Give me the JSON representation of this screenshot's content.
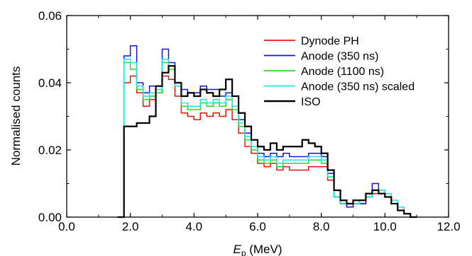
{
  "chart_data": {
    "type": "line",
    "title": "",
    "xlabel": "E",
    "xlabel_sub": "p",
    "xlabel_unit": " (MeV)",
    "ylabel": "Normalised counts",
    "xlim": [
      0,
      12
    ],
    "ylim": [
      0,
      0.06
    ],
    "x_ticks": [
      0,
      2,
      4,
      6,
      8,
      10,
      12
    ],
    "x_tick_labels": [
      "0.0",
      "2.0",
      "4.0",
      "6.0",
      "8.0",
      "10.0",
      "12.0"
    ],
    "y_ticks": [
      0,
      0.02,
      0.04,
      0.06
    ],
    "y_tick_labels": [
      "0.00",
      "0.02",
      "0.04",
      "0.06"
    ],
    "grid": false,
    "legend_position": "top-right",
    "x": [
      1.6,
      1.8,
      2.0,
      2.2,
      2.4,
      2.6,
      2.8,
      3.0,
      3.2,
      3.4,
      3.6,
      3.8,
      4.0,
      4.2,
      4.4,
      4.6,
      4.8,
      5.0,
      5.2,
      5.4,
      5.6,
      5.8,
      6.0,
      6.2,
      6.4,
      6.6,
      6.8,
      7.0,
      7.2,
      7.4,
      7.6,
      7.8,
      8.0,
      8.2,
      8.4,
      8.6,
      8.8,
      9.0,
      9.2,
      9.4,
      9.6,
      9.8,
      10.0,
      10.2,
      10.4,
      10.6,
      10.8,
      11.0
    ],
    "series": [
      {
        "name": "Dynode PH",
        "color": "#e8140c",
        "values": [
          0.0,
          0.04,
          0.042,
          0.037,
          0.033,
          0.035,
          0.037,
          0.042,
          0.041,
          0.036,
          0.031,
          0.03,
          0.029,
          0.031,
          0.03,
          0.031,
          0.03,
          0.032,
          0.029,
          0.025,
          0.021,
          0.019,
          0.016,
          0.015,
          0.016,
          0.014,
          0.015,
          0.014,
          0.014,
          0.014,
          0.015,
          0.015,
          0.015,
          0.011,
          0.006,
          0.004,
          0.003,
          0.004,
          0.004,
          0.006,
          0.007,
          0.007,
          0.006,
          0.004,
          0.003,
          0.001,
          0.0,
          0.0
        ]
      },
      {
        "name": "Anode (350 ns)",
        "color": "#1414dc",
        "values": [
          0.0,
          0.048,
          0.051,
          0.04,
          0.037,
          0.039,
          0.037,
          0.05,
          0.046,
          0.04,
          0.038,
          0.037,
          0.037,
          0.039,
          0.038,
          0.038,
          0.036,
          0.037,
          0.036,
          0.029,
          0.025,
          0.023,
          0.019,
          0.018,
          0.019,
          0.018,
          0.019,
          0.018,
          0.018,
          0.018,
          0.019,
          0.019,
          0.018,
          0.013,
          0.006,
          0.004,
          0.003,
          0.004,
          0.004,
          0.006,
          0.01,
          0.007,
          0.006,
          0.005,
          0.003,
          0.001,
          0.0,
          0.0
        ]
      },
      {
        "name": "Anode (1100 ns)",
        "color": "#22dd22",
        "values": [
          0.0,
          0.046,
          0.044,
          0.038,
          0.035,
          0.036,
          0.037,
          0.046,
          0.044,
          0.039,
          0.033,
          0.032,
          0.032,
          0.034,
          0.033,
          0.034,
          0.033,
          0.035,
          0.032,
          0.027,
          0.023,
          0.02,
          0.017,
          0.016,
          0.017,
          0.015,
          0.016,
          0.016,
          0.016,
          0.016,
          0.017,
          0.017,
          0.016,
          0.012,
          0.006,
          0.004,
          0.004,
          0.004,
          0.005,
          0.006,
          0.008,
          0.008,
          0.007,
          0.005,
          0.003,
          0.001,
          0.0,
          0.0
        ]
      },
      {
        "name": "Anode (350 ns) scaled",
        "color": "#1fe6e6",
        "values": [
          0.0,
          0.047,
          0.046,
          0.039,
          0.036,
          0.037,
          0.038,
          0.047,
          0.045,
          0.039,
          0.034,
          0.033,
          0.033,
          0.035,
          0.034,
          0.035,
          0.034,
          0.036,
          0.033,
          0.028,
          0.024,
          0.021,
          0.018,
          0.017,
          0.018,
          0.016,
          0.017,
          0.017,
          0.017,
          0.017,
          0.018,
          0.018,
          0.017,
          0.012,
          0.006,
          0.004,
          0.004,
          0.004,
          0.005,
          0.006,
          0.008,
          0.008,
          0.007,
          0.005,
          0.003,
          0.001,
          0.0,
          0.0
        ]
      },
      {
        "name": "ISO",
        "color": "#000000",
        "values": [
          0.0,
          0.027,
          0.027,
          0.028,
          0.028,
          0.03,
          0.039,
          0.043,
          0.045,
          0.04,
          0.036,
          0.037,
          0.036,
          0.038,
          0.037,
          0.036,
          0.038,
          0.041,
          0.036,
          0.031,
          0.027,
          0.023,
          0.021,
          0.02,
          0.022,
          0.02,
          0.021,
          0.021,
          0.021,
          0.023,
          0.022,
          0.021,
          0.019,
          0.014,
          0.008,
          0.005,
          0.004,
          0.005,
          0.005,
          0.007,
          0.008,
          0.007,
          0.006,
          0.004,
          0.002,
          0.001,
          0.0,
          0.0
        ]
      }
    ]
  }
}
